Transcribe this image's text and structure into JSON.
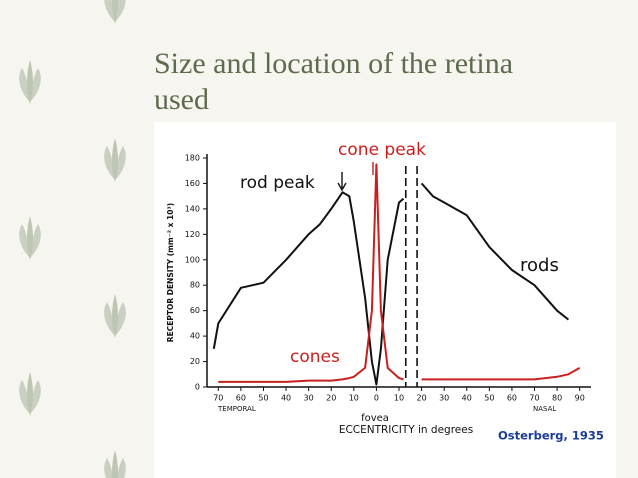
{
  "slide": {
    "title": "Size and location of the retina used"
  },
  "chart_data": {
    "type": "line",
    "y_axis_label": "RECEPTOR DENSITY (mm⁻² x 10³)",
    "x_axis_label": "ECCENTRICITY in degrees",
    "annotations": [
      "rod peak",
      "cone peak",
      "rods",
      "cones",
      "fovea",
      "TEMPORAL",
      "NASAL",
      "Osterberg, 1935"
    ],
    "optic_disk_x": [
      13,
      18
    ],
    "x": [
      -72,
      -70,
      -60,
      -50,
      -40,
      -30,
      -25,
      -20,
      -15,
      -12,
      -10,
      -5,
      -2,
      0,
      2,
      5,
      10,
      12,
      13,
      18,
      20,
      25,
      30,
      40,
      50,
      60,
      70,
      80,
      85,
      90
    ],
    "series": [
      {
        "name": "rods",
        "color": "#111111",
        "values": [
          30,
          50,
          78,
          82,
          100,
          120,
          128,
          140,
          153,
          150,
          130,
          70,
          20,
          2,
          30,
          100,
          145,
          148,
          null,
          null,
          160,
          150,
          145,
          135,
          110,
          92,
          80,
          60,
          53,
          null
        ]
      },
      {
        "name": "cones",
        "color": "#c8201e",
        "values": [
          null,
          4,
          4,
          4,
          4,
          5,
          5,
          5,
          6,
          7,
          8,
          15,
          60,
          175,
          60,
          15,
          7,
          6,
          null,
          null,
          6,
          6,
          6,
          6,
          6,
          6,
          6,
          8,
          10,
          15
        ]
      }
    ],
    "xlim": [
      -75,
      95
    ],
    "xticks": [
      {
        "value": -70,
        "label": "70"
      },
      {
        "value": -60,
        "label": "60"
      },
      {
        "value": -50,
        "label": "50"
      },
      {
        "value": -40,
        "label": "40"
      },
      {
        "value": -30,
        "label": "30"
      },
      {
        "value": -20,
        "label": "20"
      },
      {
        "value": -10,
        "label": "10"
      },
      0,
      10,
      20,
      30,
      40,
      50,
      60,
      70,
      80,
      90
    ],
    "ylim": [
      0,
      180
    ],
    "yticks": [
      0,
      20,
      40,
      60,
      80,
      100,
      120,
      140,
      160,
      180
    ]
  }
}
